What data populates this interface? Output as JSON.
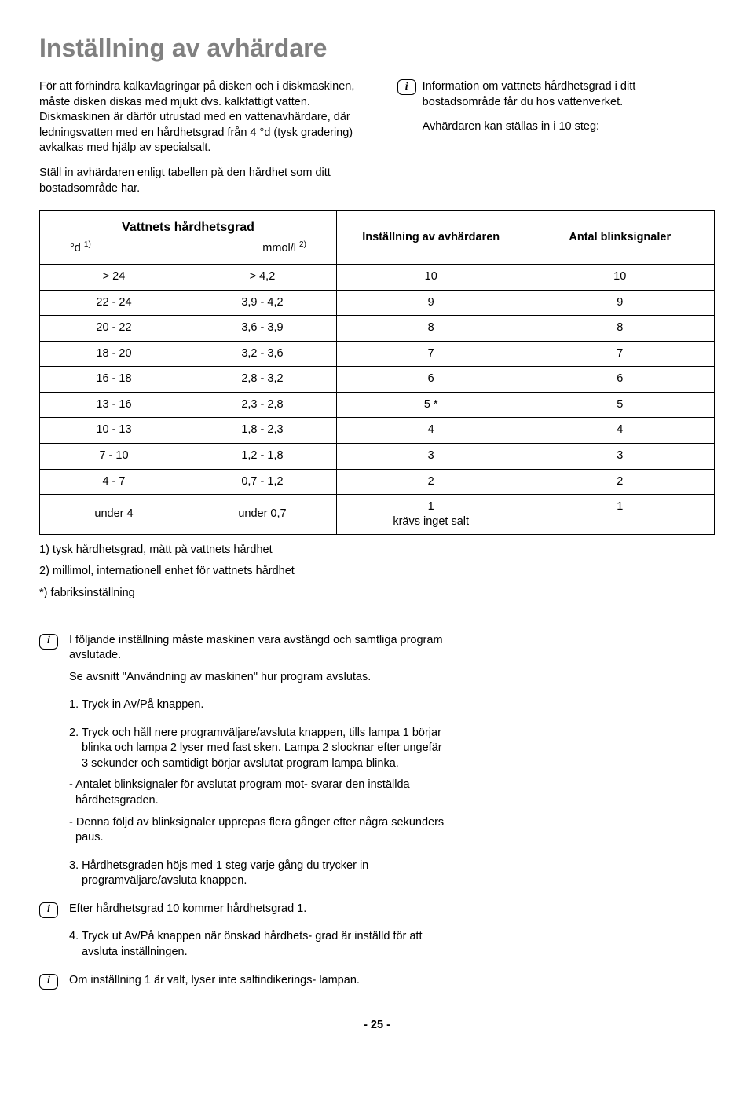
{
  "title": "Inställning av avhärdare",
  "intro_left": {
    "p1": "För att förhindra kalkavlagringar på disken och i diskmaskinen, måste disken diskas med mjukt dvs. kalkfattigt vatten. Diskmaskinen är därför utrustad med en vattenavhärdare, där ledningsvatten med en hårdhetsgrad från 4 °d (tysk gradering) avkalkas med hjälp av specialsalt.",
    "p2": "Ställ in avhärdaren enligt tabellen på den hårdhet som ditt bostadsområde har."
  },
  "intro_right": {
    "p1": "Information om vattnets hårdhetsgrad i ditt bostadsområde får du hos vattenverket.",
    "p2": "Avhärdaren kan ställas in i 10 steg:"
  },
  "table": {
    "headers": {
      "hardness_title": "Vattnets hårdhetsgrad",
      "sub_d": "°d ",
      "sub_d_sup": "1)",
      "sub_m": "mmol/l ",
      "sub_m_sup": "2)",
      "setting": "Inställning av avhärdaren",
      "blinks": "Antal blinksignaler"
    },
    "rows": [
      {
        "d": "> 24",
        "m": "> 4,2",
        "s": "10",
        "b": "10"
      },
      {
        "d": "22 - 24",
        "m": "3,9 - 4,2",
        "s": "9",
        "b": "9"
      },
      {
        "d": "20 - 22",
        "m": "3,6 - 3,9",
        "s": "8",
        "b": "8"
      },
      {
        "d": "18 - 20",
        "m": "3,2 - 3,6",
        "s": "7",
        "b": "7"
      },
      {
        "d": "16 - 18",
        "m": "2,8 - 3,2",
        "s": "6",
        "b": "6"
      },
      {
        "d": "13 - 16",
        "m": "2,3 - 2,8",
        "s": "5 *",
        "b": "5"
      },
      {
        "d": "10 - 13",
        "m": "1,8 - 2,3",
        "s": "4",
        "b": "4"
      },
      {
        "d": "7 - 10",
        "m": "1,2 - 1,8",
        "s": "3",
        "b": "3"
      },
      {
        "d": "4 - 7",
        "m": "0,7 - 1,2",
        "s": "2",
        "b": "2"
      }
    ],
    "last_row": {
      "d": "under 4",
      "m": "under 0,7",
      "s1": "1",
      "s2": "krävs inget salt",
      "b": "1"
    }
  },
  "footnotes": {
    "n1": "1) tysk hårdhetsgrad, mått på vattnets hårdhet",
    "n2": "2) millimol, internationell enhet för vattnets hårdhet",
    "n3": "*) fabriksinställning"
  },
  "steps": {
    "intro1": "I följande inställning måste maskinen vara avstängd och samtliga program avslutade.",
    "intro2": "Se avsnitt \"Användning av maskinen\" hur program avslutas.",
    "s1": "1. Tryck in Av/På knappen.",
    "s2": "2. Tryck och håll nere programväljare/avsluta knappen, tills lampa 1 börjar blinka och lampa 2 lyser med fast sken. Lampa 2  slocknar efter ungefär 3 sekunder och samtidigt börjar avslutat program lampa blinka.",
    "s2a": "- Antalet blinksignaler för avslutat program mot- svarar den inställda hårdhetsgraden.",
    "s2b": "- Denna följd av blinksignaler upprepas flera gånger efter några sekunders paus.",
    "s3": "3. Hårdhetsgraden höjs med 1 steg varje gång du trycker in programväljare/avsluta knappen.",
    "s3a": "Efter hårdhetsgrad 10 kommer hårdhetsgrad 1.",
    "s4": "4. Tryck ut Av/På knappen när önskad hårdhets- grad är inställd för att avsluta inställningen.",
    "s4a": "Om inställning 1 är valt, lyser inte saltindikerings- lampan."
  },
  "page": "- 25 -"
}
